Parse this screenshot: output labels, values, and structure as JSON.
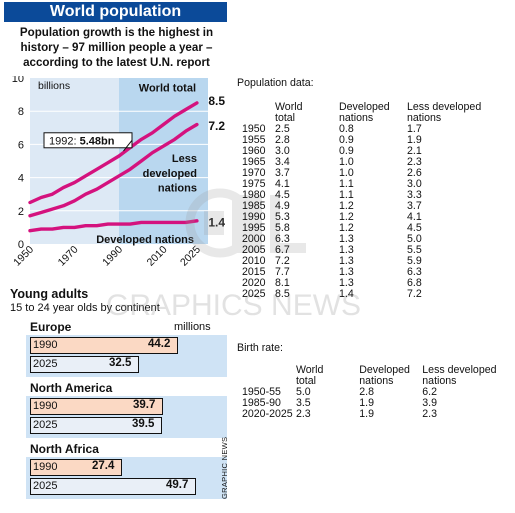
{
  "title": "World population",
  "subtitle": "Population growth is the highest in history – 97 million people a year – according to the latest U.N. report",
  "credit": "GRAPHIC NEWS",
  "watermark": "GRAPHICS NEWS",
  "chart_data": [
    {
      "type": "line",
      "unit_label": "billions",
      "ylim": [
        0,
        10
      ],
      "yticks": [
        0,
        2,
        4,
        6,
        8,
        10
      ],
      "xlim": [
        1950,
        2030
      ],
      "xticks": [
        1950,
        1970,
        1990,
        2010,
        2025
      ],
      "x": [
        1950,
        1955,
        1960,
        1965,
        1970,
        1975,
        1980,
        1985,
        1990,
        1995,
        2000,
        2005,
        2010,
        2015,
        2020,
        2025
      ],
      "series": [
        {
          "name": "World total",
          "end_label": "8.5",
          "values": [
            2.5,
            2.8,
            3.0,
            3.4,
            3.7,
            4.1,
            4.5,
            4.9,
            5.3,
            5.8,
            6.3,
            6.7,
            7.2,
            7.7,
            8.1,
            8.5
          ]
        },
        {
          "name": "Less developed nations",
          "end_label": "7.2",
          "values": [
            1.7,
            1.9,
            2.1,
            2.3,
            2.6,
            3.0,
            3.3,
            3.7,
            4.1,
            4.5,
            5.0,
            5.5,
            5.9,
            6.3,
            6.8,
            7.2
          ]
        },
        {
          "name": "Developed nations",
          "end_label": "1.4",
          "values": [
            0.8,
            0.9,
            0.9,
            1.0,
            1.0,
            1.1,
            1.1,
            1.2,
            1.2,
            1.2,
            1.3,
            1.3,
            1.3,
            1.3,
            1.3,
            1.4
          ]
        }
      ],
      "annotation": {
        "year": 1992,
        "prefix": "1992:",
        "value_text": "5.48bn",
        "value": 5.48
      },
      "colors": {
        "line": "#d4127e",
        "band": "#b9d7ef",
        "panel": "#dde9f5",
        "grid": "#ffffff"
      }
    },
    {
      "type": "bar",
      "title": "Young adults",
      "subtitle": "15 to 24 year olds by continent",
      "unit": "millions",
      "categories": [
        "1990",
        "2025"
      ],
      "scale_max": 49.7,
      "series": [
        {
          "name": "Europe",
          "values": [
            44.2,
            32.5
          ]
        },
        {
          "name": "North America",
          "values": [
            39.7,
            39.5
          ]
        },
        {
          "name": "North Africa",
          "values": [
            27.4,
            49.7
          ]
        }
      ]
    }
  ],
  "population_table": {
    "caption": "Population data:",
    "headers": [
      [
        "",
        ""
      ],
      [
        "World",
        "total"
      ],
      [
        "Developed",
        "nations"
      ],
      [
        "Less developed",
        "nations"
      ]
    ],
    "rows": [
      [
        "1950",
        "2.5",
        "0.8",
        "1.7"
      ],
      [
        "1955",
        "2.8",
        "0.9",
        "1.9"
      ],
      [
        "1960",
        "3.0",
        "0.9",
        "2.1"
      ],
      [
        "1965",
        "3.4",
        "1.0",
        "2.3"
      ],
      [
        "1970",
        "3.7",
        "1.0",
        "2.6"
      ],
      [
        "1975",
        "4.1",
        "1.1",
        "3.0"
      ],
      [
        "1980",
        "4.5",
        "1.1",
        "3.3"
      ],
      [
        "1985",
        "4.9",
        "1.2",
        "3.7"
      ],
      [
        "1990",
        "5.3",
        "1.2",
        "4.1"
      ],
      [
        "1995",
        "5.8",
        "1.2",
        "4.5"
      ],
      [
        "2000",
        "6.3",
        "1.3",
        "5.0"
      ],
      [
        "2005",
        "6.7",
        "1.3",
        "5.5"
      ],
      [
        "2010",
        "7.2",
        "1.3",
        "5.9"
      ],
      [
        "2015",
        "7.7",
        "1.3",
        "6.3"
      ],
      [
        "2020",
        "8.1",
        "1.3",
        "6.8"
      ],
      [
        "2025",
        "8.5",
        "1.4",
        "7.2"
      ]
    ]
  },
  "birth_table": {
    "caption": "Birth rate:",
    "headers": [
      [
        "",
        ""
      ],
      [
        "World",
        "total"
      ],
      [
        "Developed",
        "nations"
      ],
      [
        "Less developed",
        "nations"
      ]
    ],
    "rows": [
      [
        "1950-55",
        "5.0",
        "2.8",
        "6.2"
      ],
      [
        "1985-90",
        "3.5",
        "1.9",
        "3.9"
      ],
      [
        "2020-2025",
        "2.3",
        "1.9",
        "2.3"
      ]
    ]
  }
}
